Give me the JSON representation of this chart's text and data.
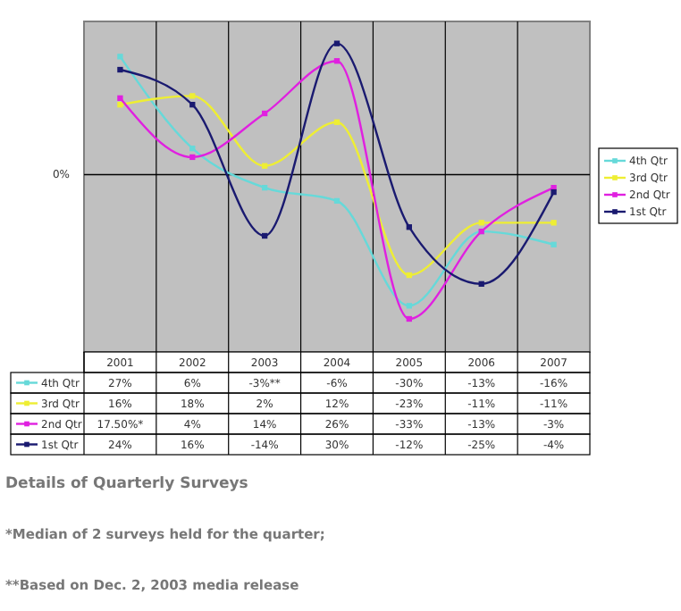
{
  "chart_data": {
    "type": "line",
    "categories": [
      "2001",
      "2002",
      "2003",
      "2004",
      "2005",
      "2006",
      "2007"
    ],
    "series": [
      {
        "name": "4th Qtr",
        "color": "#66d9d9",
        "values": [
          27,
          6,
          -3,
          -6,
          -30,
          -13,
          -16
        ],
        "value_labels": [
          "27%",
          "6%",
          "-3%**",
          "-6%",
          "-30%",
          "-13%",
          "-16%"
        ]
      },
      {
        "name": "3rd Qtr",
        "color": "#eeee33",
        "values": [
          16,
          18,
          2,
          12,
          -23,
          -11,
          -11
        ],
        "value_labels": [
          "16%",
          "18%",
          "2%",
          "12%",
          "-23%",
          "-11%",
          "-11%"
        ]
      },
      {
        "name": "2nd Qtr",
        "color": "#e020e0",
        "values": [
          17.5,
          4,
          14,
          26,
          -33,
          -13,
          -3
        ],
        "value_labels": [
          "17.50%*",
          "4%",
          "14%",
          "26%",
          "-33%",
          "-13%",
          "-3%"
        ]
      },
      {
        "name": "1st Qtr",
        "color": "#1a1a70",
        "values": [
          24,
          16,
          -14,
          30,
          -12,
          -25,
          -4
        ],
        "value_labels": [
          "24%",
          "16%",
          "-14%",
          "30%",
          "-12%",
          "-25%",
          "-4%"
        ]
      }
    ],
    "ref_lines": [
      {
        "axis": "y",
        "value": 0,
        "label": "0%"
      }
    ],
    "grid": "x",
    "legend": "right",
    "marker": "square",
    "annotations": [
      "Details of Quarterly Surveys",
      "*Median of 2 surveys held for the quarter;",
      "**Based on Dec. 2, 2003 media release"
    ]
  }
}
